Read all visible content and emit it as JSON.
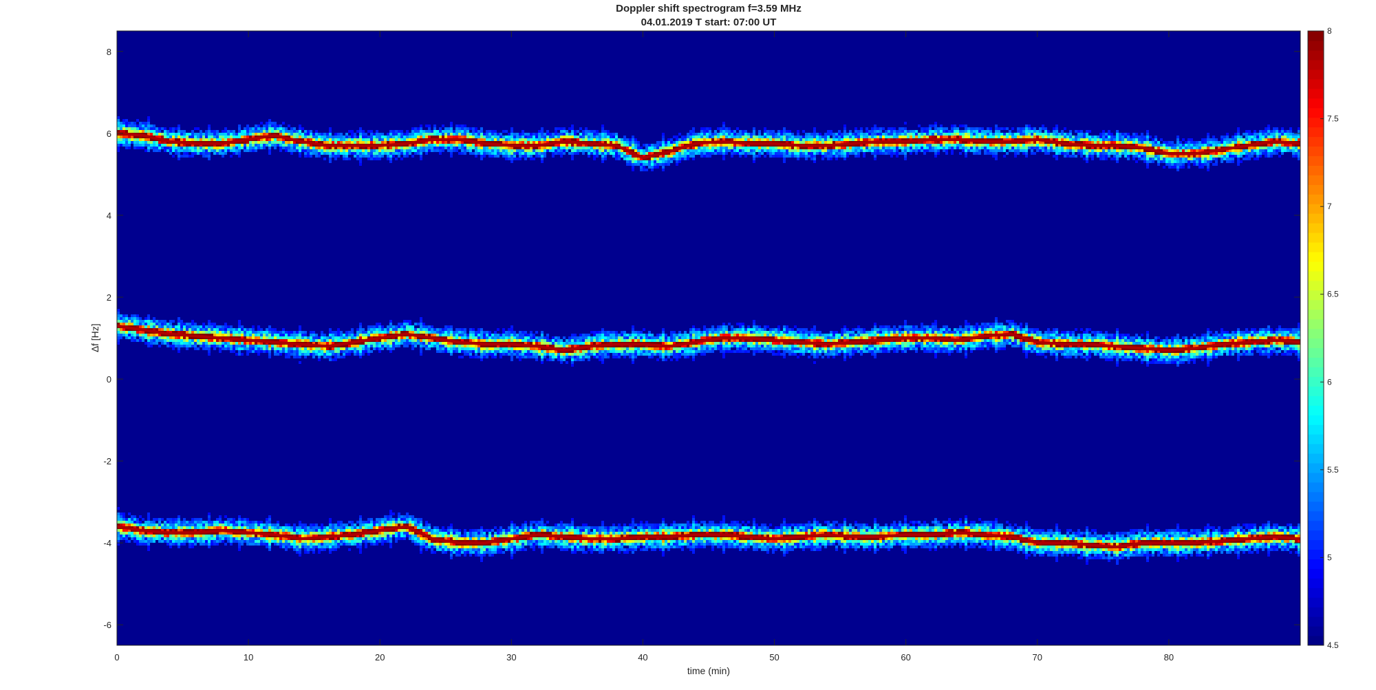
{
  "chart_data": {
    "type": "heatmap",
    "title": "Doppler shift spectrogram f=3.59 MHz",
    "subtitle": "04.01.2019   T start: 07:00 UT",
    "xlabel": "time (min)",
    "ylabel": "∆f [Hz]",
    "xlim": [
      0,
      90
    ],
    "ylim": [
      -6.5,
      8.5
    ],
    "x_ticks": [
      "0",
      "10",
      "20",
      "30",
      "40",
      "50",
      "60",
      "70",
      "80"
    ],
    "y_ticks": [
      "-6",
      "-4",
      "-2",
      "0",
      "2",
      "4",
      "6",
      "8"
    ],
    "colormap": "jet",
    "colorbar": {
      "range": [
        4.5,
        8
      ],
      "ticks": [
        "4.5",
        "5",
        "5.5",
        "6",
        "6.5",
        "7",
        "7.5",
        "8"
      ]
    },
    "background_level": 4.6,
    "ridges": [
      {
        "name": "upper trace",
        "peak_level": 8,
        "x": [
          0,
          2,
          4,
          6,
          8,
          10,
          12,
          14,
          16,
          18,
          20,
          22,
          24,
          26,
          28,
          30,
          32,
          34,
          36,
          38,
          40,
          42,
          44,
          46,
          48,
          50,
          52,
          54,
          56,
          58,
          60,
          62,
          64,
          66,
          68,
          70,
          72,
          74,
          76,
          78,
          80,
          82,
          84,
          86,
          88,
          90
        ],
        "y": [
          6.0,
          5.95,
          5.8,
          5.75,
          5.75,
          5.85,
          5.95,
          5.8,
          5.7,
          5.7,
          5.7,
          5.75,
          5.85,
          5.85,
          5.75,
          5.7,
          5.7,
          5.8,
          5.75,
          5.7,
          5.4,
          5.55,
          5.75,
          5.8,
          5.75,
          5.75,
          5.7,
          5.7,
          5.75,
          5.8,
          5.8,
          5.85,
          5.85,
          5.8,
          5.8,
          5.85,
          5.75,
          5.7,
          5.7,
          5.65,
          5.5,
          5.5,
          5.6,
          5.7,
          5.8,
          5.75
        ]
      },
      {
        "name": "middle trace",
        "peak_level": 8,
        "x": [
          0,
          2,
          4,
          6,
          8,
          10,
          12,
          14,
          16,
          18,
          20,
          22,
          24,
          26,
          28,
          30,
          32,
          34,
          36,
          38,
          40,
          42,
          44,
          46,
          48,
          50,
          52,
          54,
          56,
          58,
          60,
          62,
          64,
          66,
          68,
          70,
          72,
          74,
          76,
          78,
          80,
          82,
          84,
          86,
          88,
          90
        ],
        "y": [
          1.3,
          1.2,
          1.1,
          1.05,
          1.0,
          0.95,
          0.9,
          0.85,
          0.8,
          0.9,
          1.0,
          1.1,
          1.0,
          0.9,
          0.85,
          0.85,
          0.8,
          0.7,
          0.8,
          0.85,
          0.85,
          0.8,
          0.9,
          1.0,
          1.0,
          0.95,
          0.9,
          0.85,
          0.9,
          0.95,
          1.0,
          1.0,
          0.95,
          1.05,
          1.1,
          0.9,
          0.85,
          0.85,
          0.8,
          0.75,
          0.7,
          0.75,
          0.85,
          0.9,
          0.95,
          0.9
        ]
      },
      {
        "name": "lower trace",
        "peak_level": 8,
        "x": [
          0,
          2,
          4,
          6,
          8,
          10,
          12,
          14,
          16,
          18,
          20,
          22,
          24,
          26,
          28,
          30,
          32,
          34,
          36,
          38,
          40,
          42,
          44,
          46,
          48,
          50,
          52,
          54,
          56,
          58,
          60,
          62,
          64,
          66,
          68,
          70,
          72,
          74,
          76,
          78,
          80,
          82,
          84,
          86,
          88,
          90
        ],
        "y": [
          -3.6,
          -3.7,
          -3.75,
          -3.75,
          -3.7,
          -3.75,
          -3.8,
          -3.9,
          -3.85,
          -3.8,
          -3.7,
          -3.6,
          -3.9,
          -4.0,
          -4.0,
          -3.9,
          -3.8,
          -3.85,
          -3.9,
          -3.9,
          -3.85,
          -3.85,
          -3.8,
          -3.8,
          -3.85,
          -3.9,
          -3.85,
          -3.8,
          -3.85,
          -3.85,
          -3.8,
          -3.8,
          -3.75,
          -3.8,
          -3.85,
          -4.0,
          -4.0,
          -4.05,
          -4.1,
          -4.0,
          -4.0,
          -4.0,
          -3.95,
          -3.9,
          -3.85,
          -3.9
        ]
      }
    ],
    "grid": false,
    "legend": "none"
  }
}
